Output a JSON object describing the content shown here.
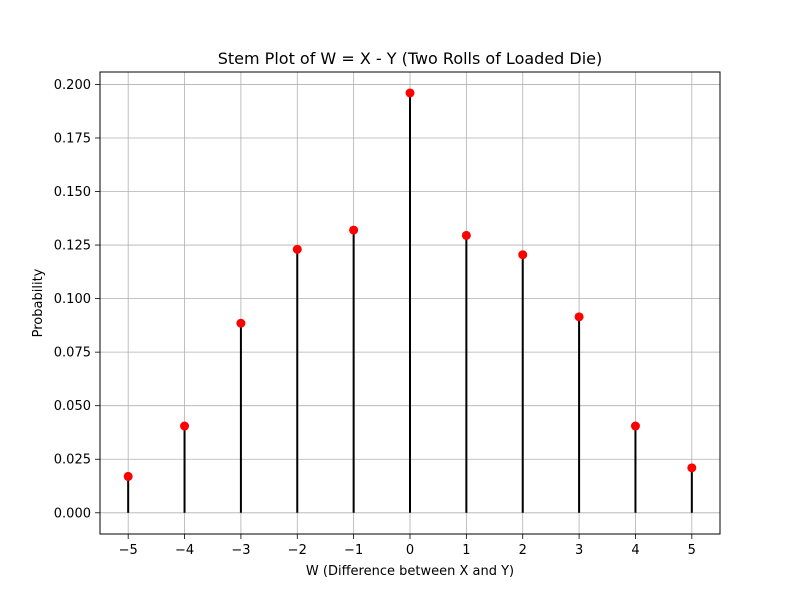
{
  "chart_data": {
    "type": "stem",
    "title": "Stem Plot of W = X - Y (Two Rolls of Loaded Die)",
    "xlabel": "W (Difference between X and Y)",
    "ylabel": "Probability",
    "x": [
      -5,
      -4,
      -3,
      -2,
      -1,
      0,
      1,
      2,
      3,
      4,
      5
    ],
    "y": [
      0.017,
      0.0405,
      0.0885,
      0.123,
      0.132,
      0.196,
      0.1295,
      0.1205,
      0.0915,
      0.0405,
      0.021
    ],
    "xlim": [
      -5.5,
      5.5
    ],
    "ylim": [
      -0.0099,
      0.2058
    ],
    "xticks": [
      -5,
      -4,
      -3,
      -2,
      -1,
      0,
      1,
      2,
      3,
      4,
      5
    ],
    "xtick_labels": [
      "−5",
      "−4",
      "−3",
      "−2",
      "−1",
      "0",
      "1",
      "2",
      "3",
      "4",
      "5"
    ],
    "yticks": [
      0.0,
      0.025,
      0.05,
      0.075,
      0.1,
      0.125,
      0.15,
      0.175,
      0.2
    ],
    "ytick_labels": [
      "0.000",
      "0.025",
      "0.050",
      "0.075",
      "0.100",
      "0.125",
      "0.150",
      "0.175",
      "0.200"
    ],
    "grid": true,
    "colors": {
      "stem": "#000000",
      "marker": "#ff0000",
      "grid": "#b0b0b0",
      "axes": "#000000"
    }
  }
}
